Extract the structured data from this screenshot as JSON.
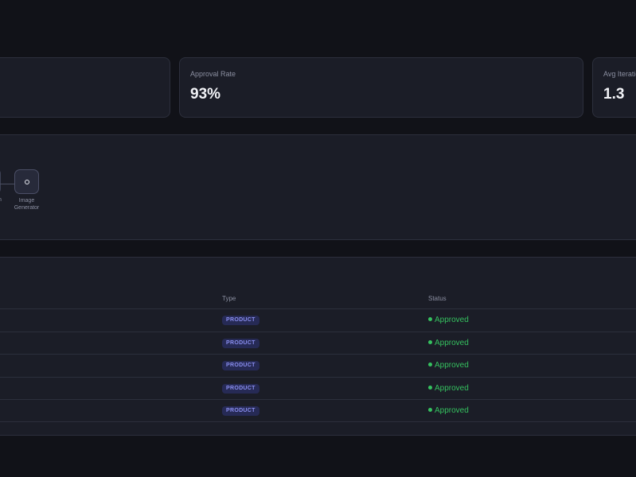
{
  "stats": [
    {
      "label": "",
      "value": ""
    },
    {
      "label": "Approval Rate",
      "value": "93%"
    },
    {
      "label": "Avg Iteratio",
      "value": "1.3"
    }
  ],
  "pipeline": {
    "prev_node_label_fragment": "n",
    "node": {
      "label_line1": "Image",
      "label_line2": "Generator",
      "icon": "circle-icon"
    }
  },
  "table": {
    "columns": [
      "Type",
      "Status"
    ],
    "rows": [
      {
        "type": "PRODUCT",
        "status": "Approved"
      },
      {
        "type": "PRODUCT",
        "status": "Approved"
      },
      {
        "type": "PRODUCT",
        "status": "Approved"
      },
      {
        "type": "PRODUCT",
        "status": "Approved"
      },
      {
        "type": "PRODUCT",
        "status": "Approved"
      }
    ]
  },
  "colors": {
    "background": "#111218",
    "panel": "#1b1d27",
    "success": "#35c15f",
    "badge_bg": "#262a55",
    "badge_text": "#8a8ef0"
  }
}
